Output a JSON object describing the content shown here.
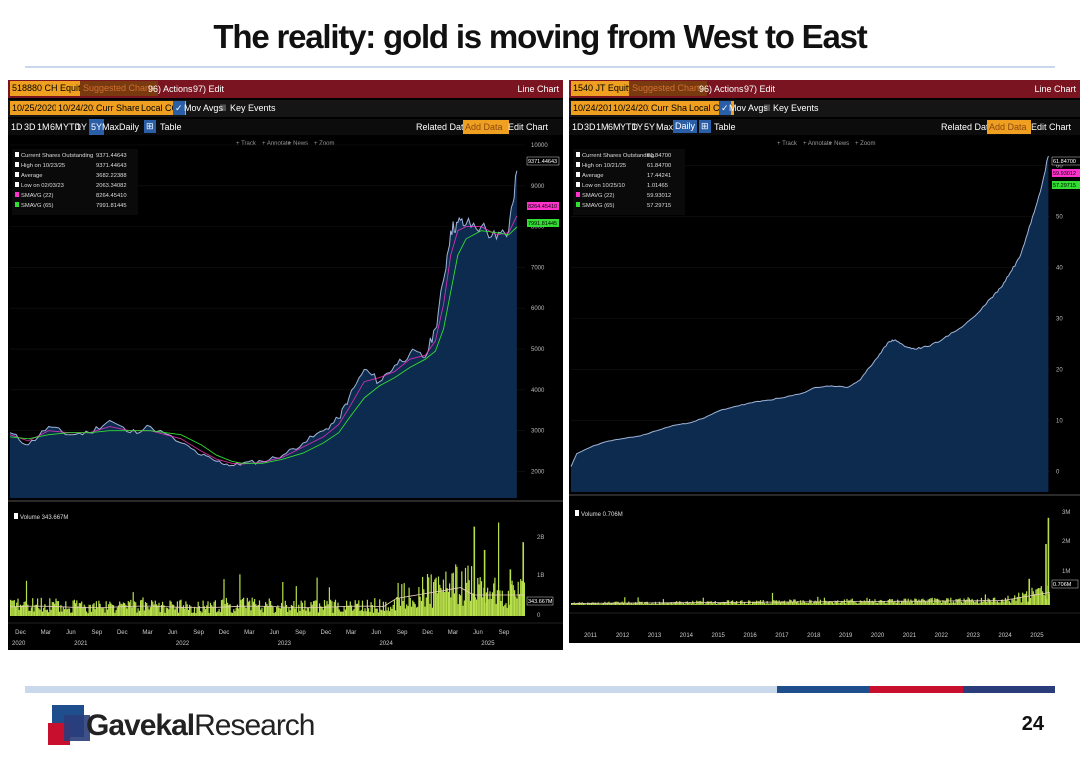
{
  "slide": {
    "title": "The reality: gold is moving from West to East",
    "page_number": "24",
    "logo_part1": "Gavekal",
    "logo_part2": "Research"
  },
  "colors": {
    "bloomberg_red": "#7a1420",
    "orange": "#f0a020",
    "area_fill": "#0d2a4f",
    "sma22": "#ff33cc",
    "sma65": "#33dd33",
    "volume": "#b8e04a",
    "footer_light": "#c9d8ea",
    "footer_blue": "#1f4e8c",
    "footer_red": "#c8102e",
    "footer_navy": "#2a3d7a"
  },
  "left": {
    "ticker": "518880 CH Equity",
    "suggested": "Suggested Charts",
    "actions": "96) Actions",
    "edit": "97) Edit",
    "chart_type": "Line Chart",
    "date_from": "10/25/2020",
    "date_to": "10/24/2025",
    "field": "Curr Shares O",
    "currency": "Local CCY",
    "mov_avgs": "Mov Avgs",
    "key_events": "Key Events",
    "periods": [
      "1D",
      "3D",
      "1M",
      "6M",
      "YTD",
      "1Y",
      "5Y",
      "Max"
    ],
    "active_period": "5Y",
    "frequency": "Daily",
    "table": "Table",
    "related": "Related Data",
    "add_data": "Add Data",
    "edit_chart": "Edit Chart",
    "tools": [
      "Track",
      "Annotate",
      "News",
      "Zoom"
    ],
    "legend": [
      {
        "label": "Current Shares Outstanding",
        "value": "9371.44643"
      },
      {
        "label": "High on 10/23/25",
        "value": "9371.44643"
      },
      {
        "label": "Average",
        "value": "3682.22388"
      },
      {
        "label": "Low on 02/03/23",
        "value": "2063.34082"
      },
      {
        "label": "SMAVG (22)",
        "value": "8264.45410"
      },
      {
        "label": "SMAVG (65)",
        "value": "7991.81445"
      }
    ],
    "last_labels": [
      "9371.44643",
      "8264.45410",
      "7991.81445"
    ],
    "volume_label": "Volume 343.667M",
    "volume_last": "343.667M",
    "volume_ticks": [
      "2B",
      "1B",
      "0"
    ],
    "x_months": [
      "Dec",
      "Mar",
      "Jun",
      "Sep",
      "Dec",
      "Mar",
      "Jun",
      "Sep",
      "Dec",
      "Mar",
      "Jun",
      "Sep",
      "Dec",
      "Mar",
      "Jun",
      "Sep",
      "Dec",
      "Mar",
      "Jun",
      "Sep"
    ],
    "x_years": [
      "2020",
      "2021",
      "2022",
      "2023",
      "2024",
      "2025"
    ]
  },
  "right": {
    "ticker": "1540 JT Equity",
    "suggested": "Suggested Charts",
    "actions": "96) Actions",
    "edit": "97) Edit",
    "chart_type": "Line Chart",
    "date_from": "10/24/2010",
    "date_to": "10/24/2025",
    "field": "Curr Shares O",
    "currency": "Local CCY",
    "mov_avgs": "Mov Avgs",
    "key_events": "Key Events",
    "periods": [
      "1D",
      "3D",
      "1M",
      "6M",
      "YTD",
      "1Y",
      "5Y",
      "Max"
    ],
    "active_period": "Daily",
    "frequency": "Daily",
    "table": "Table",
    "related": "Related Data",
    "add_data": "Add Data",
    "edit_chart": "Edit Chart",
    "tools": [
      "Track",
      "Annotate",
      "News",
      "Zoom"
    ],
    "legend": [
      {
        "label": "Current Shares Outstanding",
        "value": "61.84700"
      },
      {
        "label": "High on 10/21/25",
        "value": "61.84700"
      },
      {
        "label": "Average",
        "value": "17.44241"
      },
      {
        "label": "Low on 10/25/10",
        "value": "1.01465"
      },
      {
        "label": "SMAVG (22)",
        "value": "59.93012"
      },
      {
        "label": "SMAVG (65)",
        "value": "57.29715"
      }
    ],
    "last_labels": [
      "61.84700",
      "59.93012",
      "57.29715"
    ],
    "volume_label": "Volume 0.706M",
    "volume_last": "0.706M",
    "volume_ticks": [
      "3M",
      "2M",
      "1M"
    ],
    "x_years": [
      "2011",
      "2012",
      "2013",
      "2014",
      "2015",
      "2016",
      "2017",
      "2018",
      "2019",
      "2020",
      "2021",
      "2022",
      "2023",
      "2024",
      "2025"
    ]
  },
  "chart_data": [
    {
      "type": "area",
      "title": "518880 CH Equity",
      "series_name": "Current Shares Outstanding",
      "x_unit": "year",
      "x": [
        2020.82,
        2021.0,
        2021.2,
        2021.4,
        2021.6,
        2021.8,
        2022.0,
        2022.2,
        2022.5,
        2022.7,
        2022.85,
        2023.0,
        2023.1,
        2023.3,
        2023.5,
        2023.7,
        2023.9,
        2024.05,
        2024.15,
        2024.3,
        2024.45,
        2024.6,
        2024.75,
        2024.9,
        2025.0,
        2025.08,
        2025.15,
        2025.22,
        2025.3,
        2025.45,
        2025.6,
        2025.72,
        2025.8
      ],
      "values": [
        2950,
        2650,
        3100,
        2900,
        2950,
        3250,
        2950,
        3100,
        2700,
        2400,
        2250,
        2150,
        2200,
        2250,
        2400,
        2700,
        3000,
        3300,
        3800,
        4500,
        4200,
        4600,
        4900,
        4800,
        5500,
        6700,
        7900,
        8100,
        8050,
        8000,
        7700,
        7900,
        9371
      ],
      "sma22": [
        2900,
        2750,
        3000,
        2950,
        2950,
        3100,
        3000,
        3000,
        2800,
        2500,
        2300,
        2200,
        2180,
        2230,
        2350,
        2600,
        2850,
        3150,
        3550,
        4200,
        4300,
        4450,
        4750,
        4850,
        5200,
        6100,
        7300,
        7900,
        8000,
        8000,
        7800,
        7850,
        8264
      ],
      "sma65": [
        2850,
        2800,
        2900,
        2950,
        2950,
        3000,
        3000,
        3000,
        2900,
        2650,
        2400,
        2250,
        2200,
        2200,
        2300,
        2450,
        2700,
        2950,
        3300,
        3800,
        4100,
        4300,
        4550,
        4750,
        4950,
        5500,
        6400,
        7300,
        7700,
        7900,
        7850,
        7800,
        7991
      ],
      "y_ticks": [
        2000,
        3000,
        4000,
        5000,
        6000,
        7000,
        8000,
        9000,
        10000
      ],
      "ylim": [
        1350,
        10000
      ],
      "xlim": [
        2020.82,
        2025.88
      ],
      "volume_ylim": [
        0,
        2600
      ]
    },
    {
      "type": "area",
      "title": "1540 JT Equity",
      "series_name": "Current Shares Outstanding",
      "x_unit": "year",
      "x": [
        2010.82,
        2011.0,
        2011.5,
        2012.0,
        2012.5,
        2013.0,
        2013.5,
        2014.0,
        2014.5,
        2015.0,
        2015.5,
        2016.0,
        2016.5,
        2017.0,
        2017.5,
        2018.0,
        2018.5,
        2019.0,
        2019.5,
        2019.9,
        2020.2,
        2020.5,
        2020.8,
        2021.0,
        2021.3,
        2021.6,
        2022.0,
        2022.5,
        2023.0,
        2023.5,
        2024.0,
        2024.3,
        2024.6,
        2024.9,
        2025.2,
        2025.5,
        2025.8
      ],
      "values": [
        1.0,
        3.5,
        5.0,
        6.0,
        6.5,
        7.0,
        8.0,
        9.0,
        9.5,
        10.5,
        12.0,
        12.8,
        13.5,
        14.0,
        14.5,
        15.2,
        16.5,
        16.8,
        16.5,
        18.0,
        20.5,
        23.0,
        25.5,
        25.8,
        24.5,
        24.0,
        24.5,
        26.0,
        28.0,
        30.5,
        34.0,
        36.0,
        39.0,
        42.0,
        48.0,
        54.0,
        61.847
      ],
      "y_ticks": [
        0,
        10,
        20,
        30,
        40,
        50,
        60
      ],
      "ylim": [
        -4,
        64
      ],
      "xlim": [
        2010.82,
        2025.85
      ],
      "volume_ylim": [
        0,
        3.2
      ]
    }
  ]
}
